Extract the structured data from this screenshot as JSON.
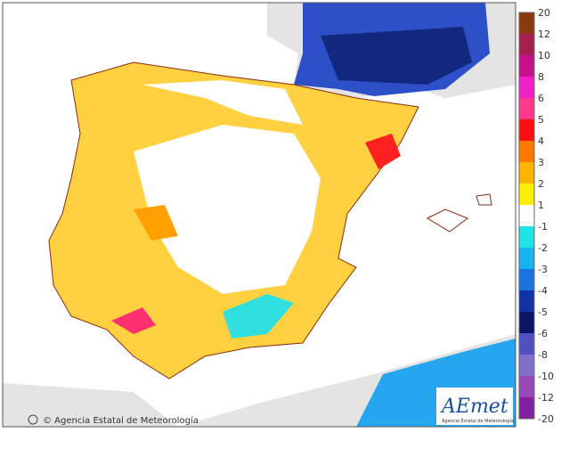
{
  "map": {
    "copyright": "© Agencia Estatal de Meteorología",
    "logo": {
      "name": "AEmet",
      "subtitle": "Agencia Estatal de Meteorología"
    },
    "legend": {
      "labels": [
        "20",
        "12",
        "10",
        "8",
        "6",
        "5",
        "4",
        "3",
        "2",
        "1",
        "-1",
        "-2",
        "-3",
        "-4",
        "-5",
        "-6",
        "-8",
        "-10",
        "-12",
        "-20"
      ],
      "colors": [
        "#8b3a10",
        "#a3204f",
        "#c8108c",
        "#f020c8",
        "#ff3a8c",
        "#ff1010",
        "#ff7800",
        "#ffb400",
        "#ffee00",
        "#ffffff",
        "#20e4e4",
        "#18b4f0",
        "#1a72dc",
        "#1232a8",
        "#0c1464",
        "#5050c0",
        "#8070cc",
        "#9848b8",
        "#8022a0"
      ]
    }
  }
}
